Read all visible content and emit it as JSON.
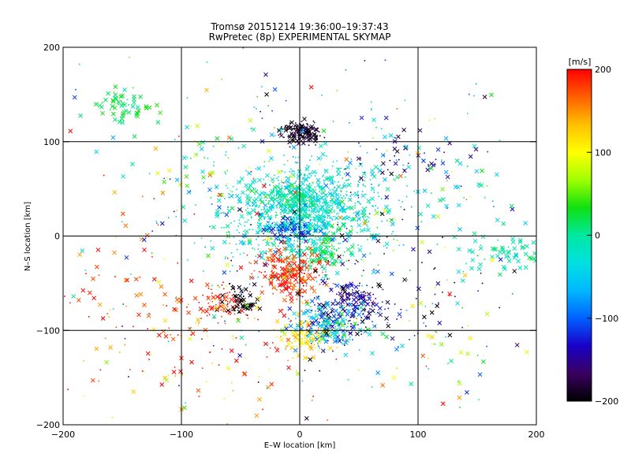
{
  "chart_data": {
    "type": "scatter",
    "title": "Tromsø 20151214 19:36:00–19:37:43",
    "subtitle": "RwPretec (8p) EXPERIMENTAL SKYMAP",
    "xlabel": "E–W location [km]",
    "ylabel": "N–S location [km]",
    "xlim": [
      -200,
      200
    ],
    "ylim": [
      -200,
      200
    ],
    "x_ticks": [
      "−200",
      "−100",
      "0",
      "100",
      "200"
    ],
    "y_ticks": [
      "−200",
      "−100",
      "0",
      "100",
      "200"
    ],
    "grid_lines_km": [
      -100,
      0,
      100
    ],
    "grid": true,
    "marker_types": [
      "dot",
      "cross"
    ],
    "colorbar": {
      "label": "[m/s]",
      "range": [
        -200,
        200
      ],
      "ticks": [
        "200",
        "100",
        "0",
        "−100",
        "−200"
      ],
      "tick_values": [
        200,
        100,
        0,
        -100,
        -200
      ],
      "palette": [
        "#000000",
        "#3a0060",
        "#1a00c8",
        "#0060ff",
        "#00b8ff",
        "#00e0e0",
        "#00e8a0",
        "#10e010",
        "#a0ff00",
        "#ffff00",
        "#ffc000",
        "#ff6000",
        "#ff0000"
      ]
    },
    "clusters": [
      {
        "x": 0,
        "y": 110,
        "sx": 8,
        "sy": 5,
        "n": 160,
        "v": -190,
        "sv": 15,
        "crossFrac": 0.4
      },
      {
        "x": 0,
        "y": 20,
        "sx": 30,
        "sy": 25,
        "n": 900,
        "v": -20,
        "sv": 25,
        "crossFrac": 0.3
      },
      {
        "x": 10,
        "y": 40,
        "sx": 35,
        "sy": 20,
        "n": 300,
        "v": -35,
        "sv": 20,
        "crossFrac": 0.3
      },
      {
        "x": -8,
        "y": 8,
        "sx": 10,
        "sy": 6,
        "n": 90,
        "v": -110,
        "sv": 20,
        "crossFrac": 0.3
      },
      {
        "x": -5,
        "y": 42,
        "sx": 10,
        "sy": 6,
        "n": 90,
        "v": 5,
        "sv": 12,
        "crossFrac": 0.3
      },
      {
        "x": 20,
        "y": -15,
        "sx": 10,
        "sy": 8,
        "n": 70,
        "v": 20,
        "sv": 15,
        "crossFrac": 0.3
      },
      {
        "x": -10,
        "y": -40,
        "sx": 15,
        "sy": 12,
        "n": 220,
        "v": 185,
        "sv": 15,
        "crossFrac": 0.45
      },
      {
        "x": -65,
        "y": -70,
        "sx": 10,
        "sy": 10,
        "n": 80,
        "v": 190,
        "sv": 10,
        "crossFrac": 0.2
      },
      {
        "x": -48,
        "y": -68,
        "sx": 8,
        "sy": 8,
        "n": 60,
        "v": -195,
        "sv": 10,
        "crossFrac": 0.5
      },
      {
        "x": 45,
        "y": -70,
        "sx": 15,
        "sy": 10,
        "n": 160,
        "v": -150,
        "sv": 30,
        "crossFrac": 0.4
      },
      {
        "x": 25,
        "y": -95,
        "sx": 15,
        "sy": 12,
        "n": 260,
        "v": -70,
        "sv": 60,
        "crossFrac": 0.35
      },
      {
        "x": 5,
        "y": -110,
        "sx": 12,
        "sy": 10,
        "n": 120,
        "v": 120,
        "sv": 25,
        "crossFrac": 0.35
      },
      {
        "x": -150,
        "y": 135,
        "sx": 12,
        "sy": 10,
        "n": 60,
        "v": 20,
        "sv": 15,
        "crossFrac": 0.85
      },
      {
        "x": 170,
        "y": -20,
        "sx": 20,
        "sy": 12,
        "n": 60,
        "v": -5,
        "sv": 15,
        "crossFrac": 0.8
      },
      {
        "x": 115,
        "y": 50,
        "sx": 40,
        "sy": 20,
        "n": 40,
        "v": -20,
        "sv": 40,
        "crossFrac": 0.7
      },
      {
        "x": 90,
        "y": 80,
        "sx": 25,
        "sy": 15,
        "n": 40,
        "v": -170,
        "sv": 30,
        "crossFrac": 0.7
      },
      {
        "x": -90,
        "y": -120,
        "sx": 50,
        "sy": 40,
        "n": 120,
        "v": 160,
        "sv": 60,
        "crossFrac": 0.4
      },
      {
        "x": -150,
        "y": -60,
        "sx": 35,
        "sy": 40,
        "n": 50,
        "v": 180,
        "sv": 20,
        "crossFrac": 0.6
      },
      {
        "x": 70,
        "y": -40,
        "sx": 50,
        "sy": 50,
        "n": 90,
        "v": -150,
        "sv": 60,
        "crossFrac": 0.5
      },
      {
        "x": 0,
        "y": 0,
        "sx": 90,
        "sy": 90,
        "n": 400,
        "v": 0,
        "sv": 110,
        "crossFrac": 0.3
      },
      {
        "x": 110,
        "y": -130,
        "sx": 40,
        "sy": 30,
        "n": 35,
        "v": 50,
        "sv": 120,
        "crossFrac": 0.6
      },
      {
        "x": -80,
        "y": 60,
        "sx": 35,
        "sy": 30,
        "n": 80,
        "v": 0,
        "sv": 90,
        "crossFrac": 0.5
      }
    ]
  }
}
